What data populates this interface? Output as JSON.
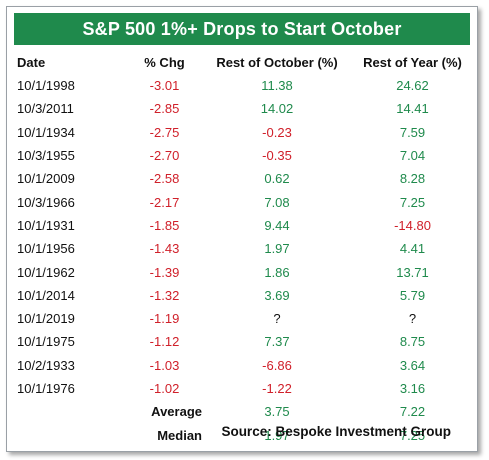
{
  "chart_data": {
    "type": "table",
    "title": "S&P 500 1%+ Drops to Start October",
    "columns": [
      "Date",
      "% Chg",
      "Rest of October (%)",
      "Rest of Year (%)"
    ],
    "rows": [
      {
        "date": "10/1/1998",
        "chg": "-3.01",
        "oct": "11.38",
        "year": "24.62"
      },
      {
        "date": "10/3/2011",
        "chg": "-2.85",
        "oct": "14.02",
        "year": "14.41"
      },
      {
        "date": "10/1/1934",
        "chg": "-2.75",
        "oct": "-0.23",
        "year": "7.59"
      },
      {
        "date": "10/3/1955",
        "chg": "-2.70",
        "oct": "-0.35",
        "year": "7.04"
      },
      {
        "date": "10/1/2009",
        "chg": "-2.58",
        "oct": "0.62",
        "year": "8.28"
      },
      {
        "date": "10/3/1966",
        "chg": "-2.17",
        "oct": "7.08",
        "year": "7.25"
      },
      {
        "date": "10/1/1931",
        "chg": "-1.85",
        "oct": "9.44",
        "year": "-14.80"
      },
      {
        "date": "10/1/1956",
        "chg": "-1.43",
        "oct": "1.97",
        "year": "4.41"
      },
      {
        "date": "10/1/1962",
        "chg": "-1.39",
        "oct": "1.86",
        "year": "13.71"
      },
      {
        "date": "10/1/2014",
        "chg": "-1.32",
        "oct": "3.69",
        "year": "5.79"
      },
      {
        "date": "10/1/2019",
        "chg": "-1.19",
        "oct": "?",
        "year": "?"
      },
      {
        "date": "10/1/1975",
        "chg": "-1.12",
        "oct": "7.37",
        "year": "8.75"
      },
      {
        "date": "10/2/1933",
        "chg": "-1.03",
        "oct": "-6.86",
        "year": "3.64"
      },
      {
        "date": "10/1/1976",
        "chg": "-1.02",
        "oct": "-1.22",
        "year": "3.16"
      }
    ],
    "summary": [
      {
        "label": "Average",
        "oct": "3.75",
        "year": "7.22"
      },
      {
        "label": "Median",
        "oct": "1.97",
        "year": "7.25"
      }
    ],
    "source": "Source: Bespoke Investment Group"
  },
  "colors": {
    "header_bg": "#1f8a4c",
    "positive": "#1f8a4c",
    "negative": "#d0202a"
  }
}
